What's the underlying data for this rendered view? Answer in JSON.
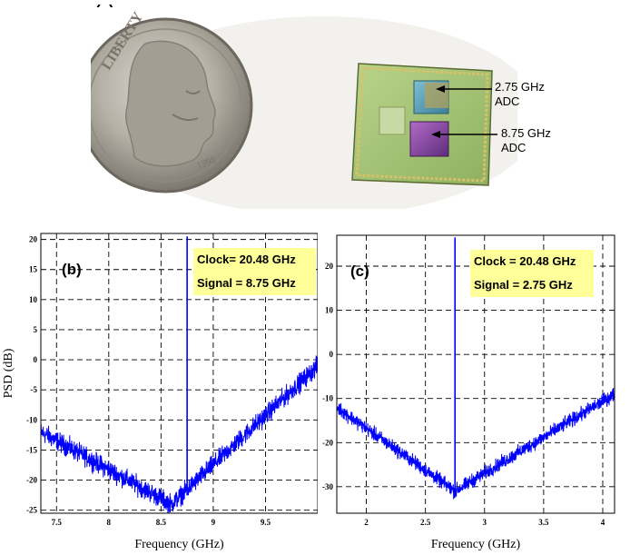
{
  "figure": {
    "panel_a_label": "(a)",
    "panel_b_label": "(b)",
    "panel_c_label": "(c)",
    "chip_labels": [
      {
        "line1": "2.75 GHz",
        "line2": "ADC"
      },
      {
        "line1": "8.75 GHz",
        "line2": "ADC"
      }
    ],
    "coin_text": "LIBERTY",
    "coin_year": "1998"
  },
  "chart_data": [
    {
      "type": "line",
      "ylabel": "PSD (dB)",
      "xlabel": "Frequency (GHz)",
      "xlim": [
        7.35,
        10.0
      ],
      "ylim": [
        -25.5,
        21
      ],
      "x_ticks": [
        7.5,
        8,
        8.5,
        9,
        9.5
      ],
      "x_tick_labels": [
        "7.5",
        "8",
        "8.5",
        "9",
        "9.5"
      ],
      "y_ticks": [
        -25,
        -20,
        -15,
        -10,
        -5,
        0,
        5,
        10,
        15,
        20
      ],
      "y_tick_labels": [
        "-25",
        "-20",
        "-15",
        "-10",
        "-5",
        "0",
        "5",
        "10",
        "15",
        "20"
      ],
      "grid": true,
      "series_color": "#0000ff",
      "noise_floor": {
        "x": [
          7.35,
          8.6,
          10.0
        ],
        "y": [
          -12,
          -24,
          -1
        ]
      },
      "signal": {
        "x": 8.75,
        "peak": 20.5
      },
      "annotations": [
        "Clock= 20.48 GHz",
        "Signal = 8.75 GHz"
      ],
      "annotation_bg": "#ffff99"
    },
    {
      "type": "line",
      "ylabel": "",
      "xlabel": "Frequency (GHz)",
      "xlim": [
        1.75,
        4.1
      ],
      "ylim": [
        -36,
        27
      ],
      "x_ticks": [
        2,
        2.5,
        3,
        3.5,
        4
      ],
      "x_tick_labels": [
        "2",
        "2.5",
        "3",
        "3.5",
        "4"
      ],
      "y_ticks": [
        -30,
        -20,
        -10,
        0,
        10,
        20
      ],
      "y_tick_labels": [
        "-30",
        "-20",
        "-10",
        "0",
        "10",
        "20"
      ],
      "grid": true,
      "series_color": "#0000ff",
      "noise_floor": {
        "x": [
          1.75,
          2.75,
          4.1
        ],
        "y": [
          -12,
          -31,
          -9
        ]
      },
      "signal": {
        "x": 2.75,
        "peak": 26.5
      },
      "annotations": [
        "Clock = 20.48 GHz",
        "Signal = 2.75 GHz"
      ],
      "annotation_bg": "#ffff99"
    }
  ]
}
